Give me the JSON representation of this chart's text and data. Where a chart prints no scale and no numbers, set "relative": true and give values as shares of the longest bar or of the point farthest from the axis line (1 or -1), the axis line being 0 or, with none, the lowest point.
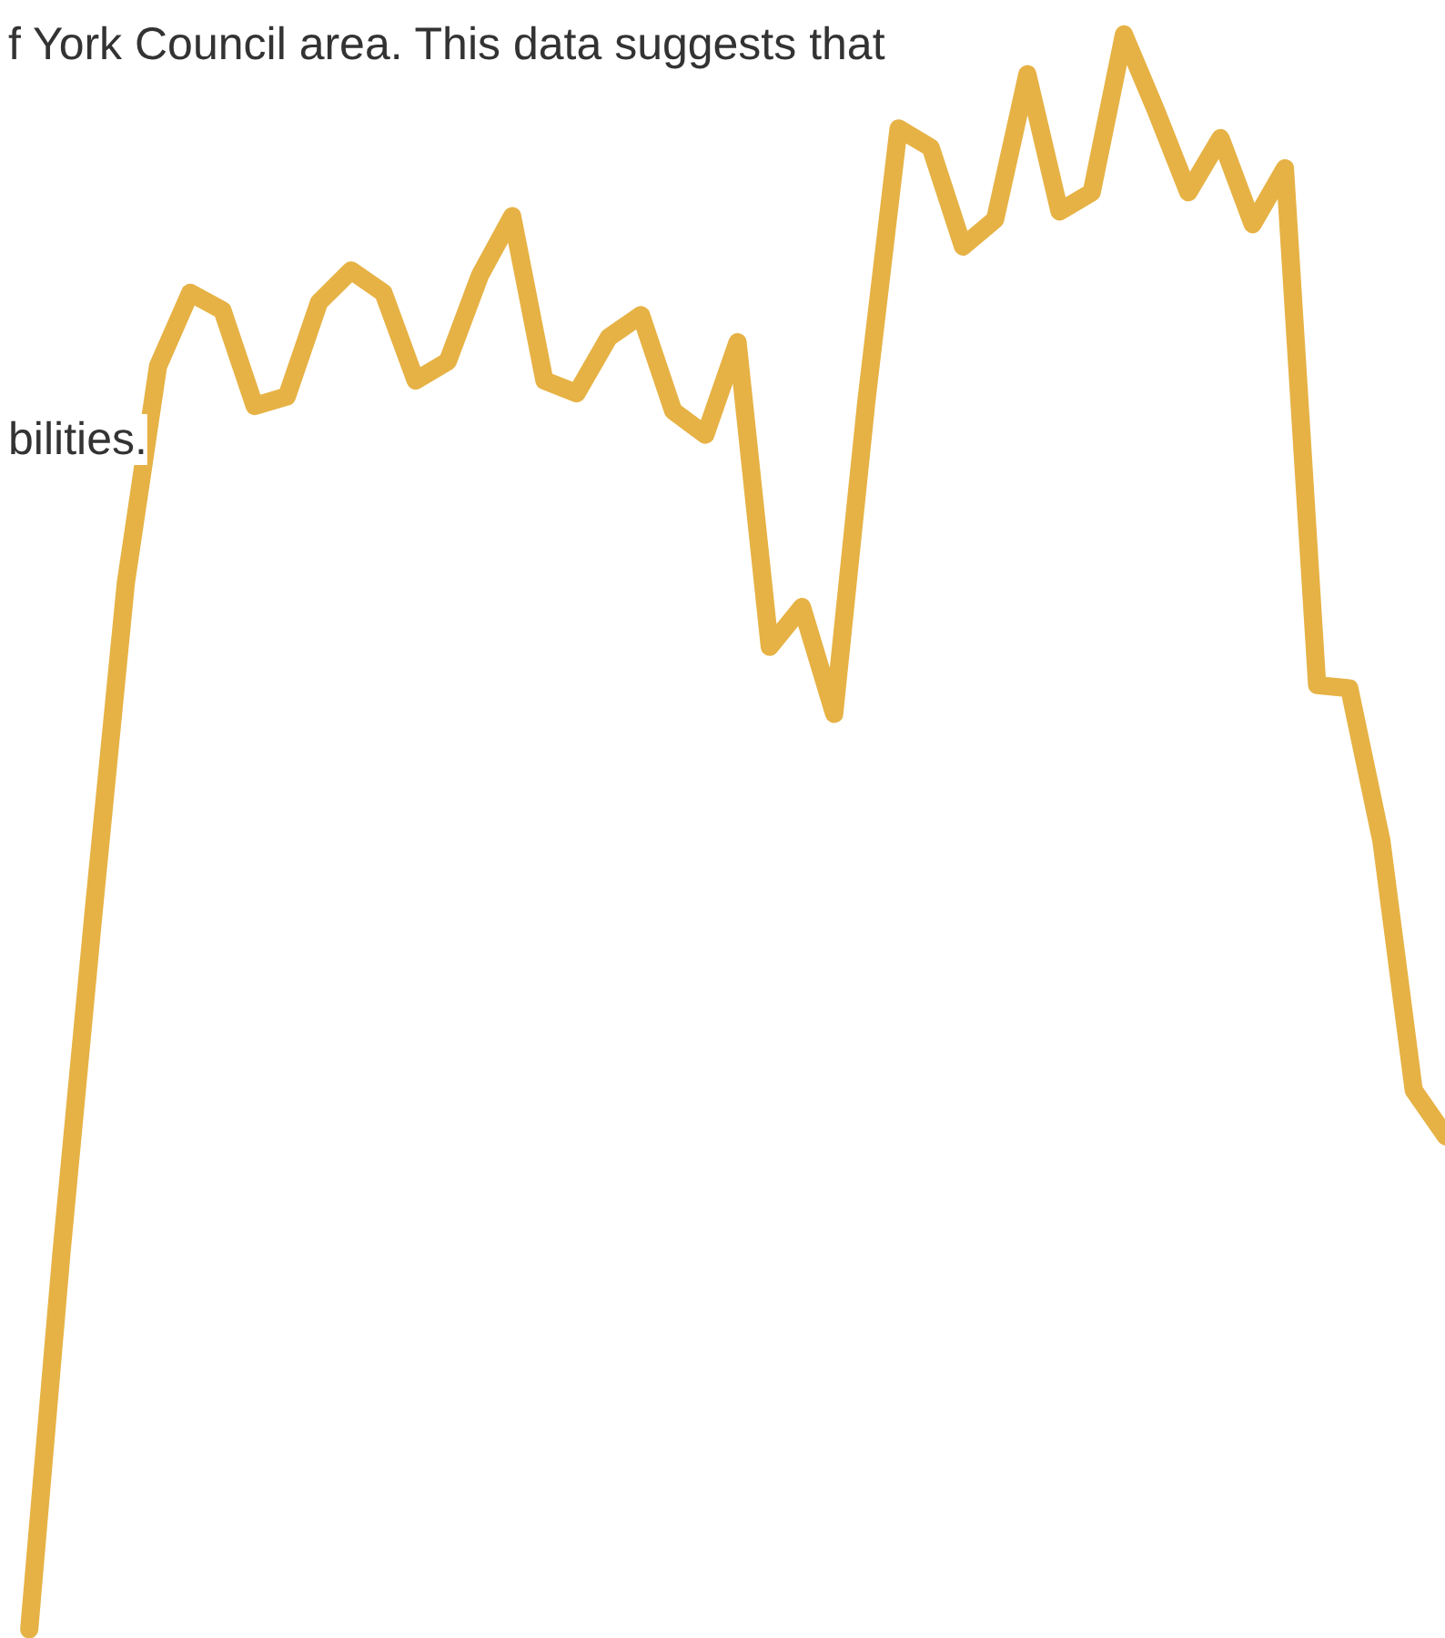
{
  "chart_data": {
    "type": "line",
    "relative": true,
    "tick_labels": false,
    "grid": false,
    "marker": "none",
    "line_style": "solid",
    "annotations": [
      "f York Council area.  This data suggests that",
      "bilities."
    ],
    "categories": [
      null,
      null,
      null,
      null,
      null,
      null,
      null,
      null,
      null,
      null,
      null,
      null,
      null,
      null,
      null,
      null,
      null,
      null,
      null,
      null,
      null,
      null,
      null,
      null,
      null,
      null,
      null,
      null,
      null,
      null,
      null,
      null,
      null,
      null,
      null,
      null,
      null,
      null,
      null,
      null,
      null,
      null,
      null,
      null,
      null
    ],
    "series": [
      {
        "color": "#e6b245",
        "values": [
          0,
          0.236,
          0.45,
          0.656,
          0.792,
          0.838,
          0.827,
          0.767,
          0.773,
          0.832,
          0.852,
          0.838,
          0.783,
          0.795,
          0.849,
          0.886,
          0.783,
          0.775,
          0.81,
          0.824,
          0.764,
          0.749,
          0.807,
          0.616,
          0.641,
          0.574,
          0.77,
          0.941,
          0.929,
          0.867,
          0.884,
          0.975,
          0.889,
          0.901,
          1,
          0.952,
          0.901,
          0.935,
          0.881,
          0.916,
          0.592,
          0.59,
          0.494,
          0.338,
          0.309
        ]
      }
    ]
  }
}
